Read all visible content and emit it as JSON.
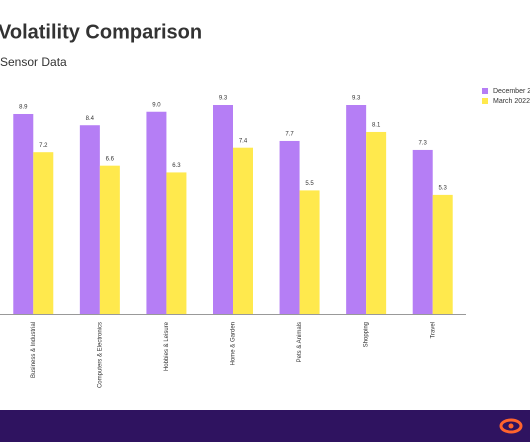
{
  "chart_data": {
    "type": "bar",
    "title": "Volatility Comparison",
    "subtitle": "Sensor Data",
    "categories": [
      "Business & Industrial",
      "Computers & Electronics",
      "Hobbies & Leisure",
      "Home & Garden",
      "Pets & Animals",
      "Shopping",
      "Travel"
    ],
    "series": [
      {
        "name": "December 2",
        "color": "#b57ef5",
        "values": [
          8.9,
          8.4,
          9.0,
          9.3,
          7.7,
          9.3,
          7.3
        ],
        "value_labels": [
          "8.9",
          "8.4",
          "9.0",
          "9.3",
          "7.7",
          "9.3",
          "7.3"
        ]
      },
      {
        "name": "March 2022",
        "color": "#ffe94d",
        "values": [
          7.2,
          6.6,
          6.3,
          7.4,
          5.5,
          8.1,
          5.3
        ],
        "value_labels": [
          "7.2",
          "6.6",
          "6.3",
          "7.4",
          "5.5",
          "8.1",
          "5.3"
        ]
      }
    ]
  }
}
